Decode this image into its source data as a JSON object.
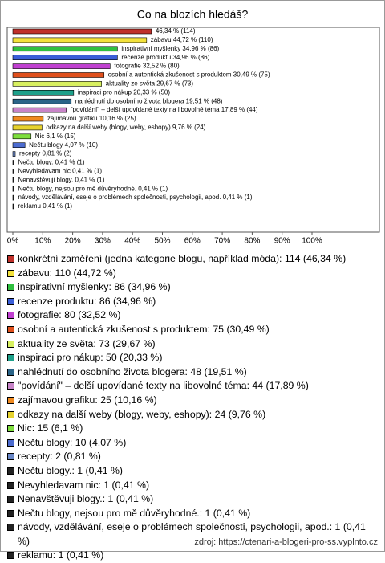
{
  "chart_data": {
    "type": "bar",
    "orientation": "horizontal",
    "title": "Co na blozích hledáš?",
    "categories": [
      "konkrétní zaměření (jedna kategorie blogu, například móda): 114 (46,34 %)",
      "zábavu: 110 (44,72 %)",
      "inspirativní myšlenky: 86 (34,96 %)",
      "recenze produktu: 86 (34,96 %)",
      "fotografie: 80 (32,52 %)",
      "osobní a autentická zkušenost s produktem: 75 (30,49 %)",
      "aktuality ze světa: 73 (29,67 %)",
      "inspiraci pro nákup: 50 (20,33 %)",
      "nahlédnutí do osobního života blogera: 48 (19,51 %)",
      "\"povídání\" – delší upovídané texty na libovolné téma: 44 (17,89 %)",
      "zajímavou grafiku: 25 (10,16 %)",
      "odkazy na další weby (blogy, weby, eshopy): 24 (9,76 %)",
      "Nic: 15 (6,1 %)",
      "Nečtu blogy: 10 (4,07 %)",
      "recepty: 2 (0,81 %)",
      "Nečtu blogy.: 1 (0,41 %)",
      "Nevyhledavam nic: 1 (0,41 %)",
      "Nenavštěvuji blogy.: 1 (0,41 %)",
      "Nečtu blogy, nejsou pro mě důvěryhodné.: 1 (0,41 %)",
      "návody, vzdělávání, eseje o problémech společnosti, psychologii, apod.: 1 (0,41 %)",
      "reklamu: 1 (0,41 %)"
    ],
    "values": [
      46.34,
      44.72,
      34.96,
      34.96,
      32.52,
      30.49,
      29.67,
      20.33,
      19.51,
      17.89,
      10.16,
      9.76,
      6.1,
      4.07,
      0.81,
      0.41,
      0.41,
      0.41,
      0.41,
      0.41,
      0.41
    ],
    "value_labels": [
      "46,34 % (114)",
      "zábavu 44,72 % (110)",
      "inspirativní myšlenky 34,96 % (86)",
      "recenze produktu 34,96 % (86)",
      "fotografie 32,52 % (80)",
      "osobní a autentická zkušenost s produktem 30,49 % (75)",
      "aktuality ze světa 29,67 % (73)",
      "inspiraci pro nákup 20,33 % (50)",
      "nahlédnutí do osobního života blogera 19,51 % (48)",
      "\"povídání\" – delší upovídané texty na libovolné téma 17,89 % (44)",
      "zajímavou grafiku 10,16 % (25)",
      "odkazy na další weby (blogy, weby, eshopy) 9,76 % (24)",
      "Nic 6,1 % (15)",
      "Nečtu blogy 4,07 % (10)",
      "recepty 0,81 % (2)",
      "Nečtu blogy. 0,41 % (1)",
      "Nevyhledavam nic 0,41 % (1)",
      "Nenavštěvuji blogy. 0,41 % (1)",
      "Nečtu blogy, nejsou pro mě důvěryhodné. 0,41 % (1)",
      "návody, vzdělávání, eseje o problémech společnosti, psychologii, apod. 0,41 % (1)",
      "reklamu 0,41 % (1)"
    ],
    "colors": [
      "#c0302a",
      "#f3e23c",
      "#30c040",
      "#3a5ed8",
      "#c040d0",
      "#e0501c",
      "#d8f060",
      "#1ea08a",
      "#2a6488",
      "#c884c8",
      "#f08a20",
      "#e6d22e",
      "#7ede3e",
      "#4c6cd0",
      "#6a88c8",
      "#222222",
      "#222222",
      "#222222",
      "#222222",
      "#222222",
      "#222222"
    ],
    "xlim": [
      0,
      100
    ],
    "xticks": [
      {
        "value": 0,
        "label": "0%"
      },
      {
        "value": 10,
        "label": "10%"
      },
      {
        "value": 20,
        "label": "20%"
      },
      {
        "value": 30,
        "label": "30%"
      },
      {
        "value": 40,
        "label": "40%"
      },
      {
        "value": 50,
        "label": "50%"
      },
      {
        "value": 60,
        "label": "60%"
      },
      {
        "value": 70,
        "label": "70%"
      },
      {
        "value": 80,
        "label": "80%"
      },
      {
        "value": 90,
        "label": "90%"
      },
      {
        "value": 100,
        "label": "100%"
      }
    ],
    "grid": false,
    "source": "zdroj: https://ctenari-a-blogeri-pro-ss.vyplnto.cz"
  }
}
